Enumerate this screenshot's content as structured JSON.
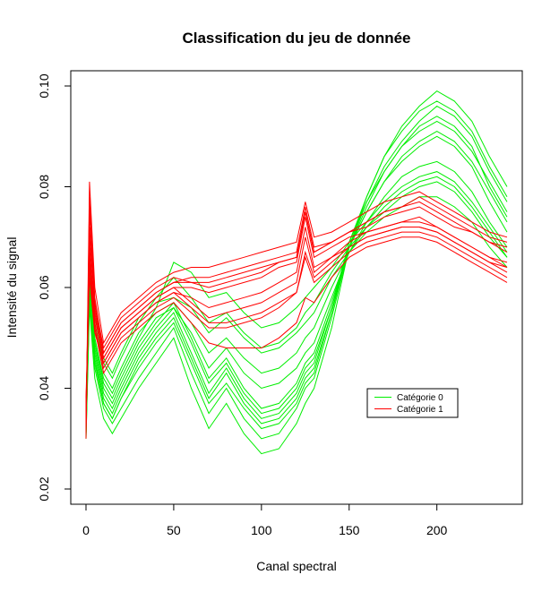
{
  "chart_data": {
    "type": "line",
    "title": "Classification du jeu de donnée",
    "xlabel": "Canal spectral",
    "ylabel": "Intensité du signal",
    "xlim": [
      0,
      240
    ],
    "ylim": [
      0.02,
      0.1
    ],
    "x_ticks": [
      0,
      50,
      100,
      150,
      200
    ],
    "x_tick_labels": [
      "0",
      "50",
      "100",
      "150",
      "200"
    ],
    "y_ticks": [
      0.02,
      0.04,
      0.06,
      0.08,
      0.1
    ],
    "y_tick_labels": [
      "0.02",
      "0.04",
      "0.06",
      "0.08",
      "0.10"
    ],
    "grid": false,
    "legend_position": "bottom-right",
    "x": [
      0,
      2,
      5,
      10,
      15,
      20,
      30,
      40,
      50,
      60,
      70,
      80,
      90,
      100,
      110,
      120,
      125,
      130,
      140,
      150,
      160,
      170,
      180,
      190,
      200,
      210,
      220,
      230,
      240
    ],
    "series": [
      {
        "name": "Catégorie 0",
        "color": "#00ee00",
        "profiles": [
          [
            0.03,
            0.058,
            0.044,
            0.036,
            0.033,
            0.036,
            0.042,
            0.047,
            0.052,
            0.043,
            0.035,
            0.04,
            0.034,
            0.03,
            0.031,
            0.036,
            0.04,
            0.042,
            0.054,
            0.068,
            0.076,
            0.083,
            0.088,
            0.092,
            0.094,
            0.092,
            0.088,
            0.08,
            0.074
          ],
          [
            0.031,
            0.062,
            0.047,
            0.038,
            0.035,
            0.039,
            0.046,
            0.051,
            0.055,
            0.047,
            0.039,
            0.044,
            0.038,
            0.034,
            0.035,
            0.039,
            0.043,
            0.045,
            0.056,
            0.068,
            0.075,
            0.081,
            0.085,
            0.088,
            0.09,
            0.088,
            0.084,
            0.077,
            0.071
          ],
          [
            0.032,
            0.06,
            0.05,
            0.041,
            0.038,
            0.042,
            0.049,
            0.054,
            0.056,
            0.051,
            0.044,
            0.048,
            0.043,
            0.04,
            0.041,
            0.044,
            0.047,
            0.049,
            0.058,
            0.067,
            0.073,
            0.078,
            0.082,
            0.084,
            0.085,
            0.083,
            0.079,
            0.073,
            0.068
          ],
          [
            0.033,
            0.066,
            0.052,
            0.043,
            0.04,
            0.044,
            0.051,
            0.055,
            0.057,
            0.053,
            0.047,
            0.05,
            0.046,
            0.043,
            0.044,
            0.047,
            0.05,
            0.052,
            0.06,
            0.067,
            0.072,
            0.076,
            0.079,
            0.081,
            0.082,
            0.08,
            0.076,
            0.071,
            0.066
          ],
          [
            0.034,
            0.064,
            0.055,
            0.046,
            0.043,
            0.047,
            0.054,
            0.057,
            0.058,
            0.056,
            0.051,
            0.054,
            0.05,
            0.047,
            0.048,
            0.051,
            0.053,
            0.055,
            0.062,
            0.067,
            0.071,
            0.074,
            0.076,
            0.078,
            0.078,
            0.076,
            0.073,
            0.068,
            0.064
          ],
          [
            0.03,
            0.056,
            0.042,
            0.034,
            0.031,
            0.034,
            0.04,
            0.045,
            0.05,
            0.04,
            0.032,
            0.037,
            0.031,
            0.027,
            0.028,
            0.033,
            0.037,
            0.04,
            0.052,
            0.068,
            0.078,
            0.086,
            0.092,
            0.096,
            0.099,
            0.097,
            0.093,
            0.086,
            0.08
          ],
          [
            0.031,
            0.059,
            0.046,
            0.037,
            0.034,
            0.038,
            0.044,
            0.049,
            0.053,
            0.045,
            0.037,
            0.041,
            0.036,
            0.032,
            0.033,
            0.037,
            0.041,
            0.043,
            0.055,
            0.068,
            0.077,
            0.084,
            0.089,
            0.093,
            0.096,
            0.094,
            0.09,
            0.083,
            0.077
          ],
          [
            0.033,
            0.063,
            0.049,
            0.04,
            0.037,
            0.041,
            0.048,
            0.053,
            0.057,
            0.05,
            0.042,
            0.046,
            0.04,
            0.036,
            0.037,
            0.041,
            0.045,
            0.047,
            0.057,
            0.068,
            0.075,
            0.081,
            0.086,
            0.089,
            0.091,
            0.089,
            0.085,
            0.079,
            0.073
          ],
          [
            0.035,
            0.067,
            0.053,
            0.045,
            0.042,
            0.046,
            0.053,
            0.058,
            0.062,
            0.058,
            0.053,
            0.055,
            0.051,
            0.048,
            0.049,
            0.052,
            0.055,
            0.057,
            0.063,
            0.068,
            0.072,
            0.075,
            0.078,
            0.08,
            0.081,
            0.079,
            0.075,
            0.07,
            0.066
          ],
          [
            0.034,
            0.061,
            0.05,
            0.042,
            0.039,
            0.043,
            0.05,
            0.056,
            0.065,
            0.063,
            0.058,
            0.059,
            0.055,
            0.052,
            0.053,
            0.056,
            0.058,
            0.06,
            0.064,
            0.069,
            0.073,
            0.077,
            0.08,
            0.082,
            0.083,
            0.081,
            0.077,
            0.072,
            0.067
          ],
          [
            0.032,
            0.057,
            0.045,
            0.037,
            0.034,
            0.038,
            0.045,
            0.05,
            0.054,
            0.046,
            0.038,
            0.043,
            0.037,
            0.033,
            0.034,
            0.038,
            0.042,
            0.044,
            0.055,
            0.069,
            0.078,
            0.086,
            0.091,
            0.095,
            0.097,
            0.095,
            0.091,
            0.084,
            0.078
          ],
          [
            0.031,
            0.064,
            0.048,
            0.039,
            0.036,
            0.04,
            0.047,
            0.052,
            0.056,
            0.049,
            0.041,
            0.045,
            0.039,
            0.035,
            0.036,
            0.04,
            0.044,
            0.046,
            0.056,
            0.069,
            0.077,
            0.083,
            0.088,
            0.091,
            0.093,
            0.091,
            0.087,
            0.081,
            0.075
          ]
        ]
      },
      {
        "name": "Catégorie 1",
        "color": "#ff0000",
        "profiles": [
          [
            0.03,
            0.078,
            0.058,
            0.047,
            0.05,
            0.053,
            0.056,
            0.059,
            0.061,
            0.062,
            0.062,
            0.063,
            0.064,
            0.065,
            0.066,
            0.067,
            0.076,
            0.068,
            0.069,
            0.071,
            0.072,
            0.074,
            0.075,
            0.076,
            0.074,
            0.072,
            0.071,
            0.069,
            0.068
          ],
          [
            0.032,
            0.072,
            0.056,
            0.046,
            0.049,
            0.052,
            0.055,
            0.058,
            0.06,
            0.06,
            0.059,
            0.06,
            0.061,
            0.062,
            0.064,
            0.065,
            0.074,
            0.066,
            0.068,
            0.07,
            0.071,
            0.072,
            0.073,
            0.074,
            0.072,
            0.07,
            0.068,
            0.066,
            0.065
          ],
          [
            0.034,
            0.068,
            0.055,
            0.045,
            0.048,
            0.051,
            0.054,
            0.057,
            0.059,
            0.058,
            0.056,
            0.057,
            0.058,
            0.059,
            0.061,
            0.063,
            0.072,
            0.064,
            0.066,
            0.068,
            0.07,
            0.071,
            0.072,
            0.072,
            0.071,
            0.069,
            0.067,
            0.065,
            0.064
          ],
          [
            0.036,
            0.066,
            0.053,
            0.044,
            0.047,
            0.05,
            0.053,
            0.056,
            0.058,
            0.055,
            0.052,
            0.052,
            0.053,
            0.054,
            0.056,
            0.059,
            0.066,
            0.061,
            0.064,
            0.067,
            0.069,
            0.07,
            0.071,
            0.071,
            0.07,
            0.068,
            0.066,
            0.064,
            0.062
          ],
          [
            0.038,
            0.064,
            0.052,
            0.043,
            0.046,
            0.049,
            0.052,
            0.055,
            0.057,
            0.053,
            0.049,
            0.048,
            0.048,
            0.048,
            0.05,
            0.053,
            0.058,
            0.057,
            0.062,
            0.066,
            0.068,
            0.069,
            0.07,
            0.07,
            0.069,
            0.067,
            0.065,
            0.063,
            0.061
          ],
          [
            0.031,
            0.081,
            0.06,
            0.049,
            0.052,
            0.055,
            0.058,
            0.061,
            0.063,
            0.064,
            0.064,
            0.065,
            0.066,
            0.067,
            0.068,
            0.069,
            0.077,
            0.07,
            0.071,
            0.073,
            0.075,
            0.077,
            0.078,
            0.079,
            0.077,
            0.075,
            0.073,
            0.071,
            0.07
          ],
          [
            0.033,
            0.07,
            0.057,
            0.048,
            0.051,
            0.054,
            0.057,
            0.06,
            0.062,
            0.061,
            0.06,
            0.061,
            0.062,
            0.063,
            0.065,
            0.066,
            0.075,
            0.067,
            0.069,
            0.071,
            0.073,
            0.075,
            0.076,
            0.077,
            0.075,
            0.073,
            0.071,
            0.069,
            0.067
          ],
          [
            0.035,
            0.067,
            0.054,
            0.046,
            0.049,
            0.052,
            0.055,
            0.058,
            0.06,
            0.057,
            0.054,
            0.055,
            0.056,
            0.057,
            0.059,
            0.061,
            0.07,
            0.063,
            0.066,
            0.069,
            0.071,
            0.072,
            0.073,
            0.073,
            0.072,
            0.07,
            0.068,
            0.066,
            0.064
          ],
          [
            0.037,
            0.062,
            0.051,
            0.045,
            0.048,
            0.051,
            0.054,
            0.057,
            0.059,
            0.056,
            0.053,
            0.053,
            0.054,
            0.055,
            0.057,
            0.059,
            0.067,
            0.062,
            0.065,
            0.068,
            0.07,
            0.071,
            0.072,
            0.072,
            0.071,
            0.069,
            0.067,
            0.065,
            0.063
          ],
          [
            0.032,
            0.075,
            0.057,
            0.047,
            0.05,
            0.053,
            0.056,
            0.059,
            0.061,
            0.061,
            0.061,
            0.062,
            0.063,
            0.064,
            0.065,
            0.066,
            0.075,
            0.067,
            0.069,
            0.071,
            0.073,
            0.075,
            0.076,
            0.078,
            0.076,
            0.074,
            0.072,
            0.07,
            0.069
          ]
        ]
      }
    ]
  }
}
